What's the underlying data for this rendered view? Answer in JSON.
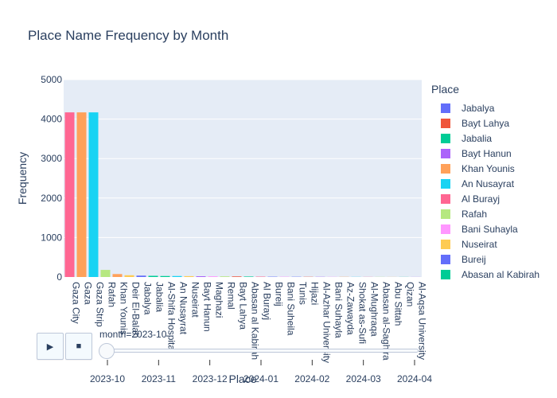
{
  "chart_data": {
    "type": "bar",
    "title": "Place Name Frequency by Month",
    "xlabel": "Place",
    "ylabel": "Frequency",
    "ylim": [
      0,
      5000
    ],
    "yticks": [
      0,
      1000,
      2000,
      3000,
      4000,
      5000
    ],
    "grid": true,
    "legend_position": "right",
    "categories": [
      "Gaza City",
      "Gaza",
      "Gaza Strip",
      "Rafah",
      "Khan Younis",
      "Deir El-Balah",
      "Jabalya",
      "Jabalia",
      "Al-Shifa Hospital",
      "An Nusayrat",
      "Nuseirat",
      "Bayt Hanun",
      "Maghazi",
      "Remal",
      "Bayt Lahya",
      "Abasan al Kabirah",
      "Al Burayj",
      "Bureij",
      "Bani Suheila",
      "Tunis",
      "Hijazi",
      "Al-Azhar University",
      "Bani Suhayla",
      "Az-Zawayda",
      "Shokat as-Sufi",
      "Al-Mughraqa",
      "Abasan al-Saghira",
      "Abu Sittah",
      "Qizan",
      "Al-Aqsa University"
    ],
    "values": [
      4170,
      4170,
      4170,
      180,
      75,
      45,
      35,
      30,
      25,
      25,
      22,
      20,
      18,
      16,
      15,
      12,
      10,
      8,
      7,
      6,
      5,
      5,
      4,
      4,
      3,
      3,
      3,
      2,
      2,
      2
    ],
    "bar_colors": [
      "#FF6692",
      "#FFA15A",
      "#19D3F3",
      "#B6E880",
      "#FFA15A",
      "#FECB52",
      "#636EFA",
      "#00CC96",
      "#00CC96",
      "#19D3F3",
      "#FECB52",
      "#AB63FA",
      "#FF97FF",
      "#B6E880",
      "#EF553B",
      "#00CC96",
      "#FF6692",
      "#636EFA",
      "#FF97FF",
      "#636EFA",
      "#EF553B",
      "#AB63FA",
      "#FF97FF",
      "#FFA15A",
      "#19D3F3",
      "#FF6692",
      "#B6E880",
      "#FECB52",
      "#00CC96",
      "#AB63FA"
    ],
    "legend": {
      "title": "Place",
      "items": [
        {
          "name": "Jabalya",
          "color": "#636EFA"
        },
        {
          "name": "Bayt Lahya",
          "color": "#EF553B"
        },
        {
          "name": "Jabalia",
          "color": "#00CC96"
        },
        {
          "name": "Bayt Hanun",
          "color": "#AB63FA"
        },
        {
          "name": "Khan Younis",
          "color": "#FFA15A"
        },
        {
          "name": "An Nusayrat",
          "color": "#19D3F3"
        },
        {
          "name": "Al Burayj",
          "color": "#FF6692"
        },
        {
          "name": "Rafah",
          "color": "#B6E880"
        },
        {
          "name": "Bani Suhayla",
          "color": "#FF97FF"
        },
        {
          "name": "Nuseirat",
          "color": "#FECB52"
        },
        {
          "name": "Bureij",
          "color": "#636EFA"
        },
        {
          "name": "Abasan al Kabirah",
          "color": "#00CC96"
        }
      ]
    },
    "slider": {
      "label": "month=2023-10",
      "ticks": [
        "2023-10",
        "2023-11",
        "2023-12",
        "2024-01",
        "2024-02",
        "2024-03",
        "2024-04"
      ],
      "value": "2023-10"
    },
    "controls": {
      "play": "▶",
      "stop": "■"
    }
  }
}
